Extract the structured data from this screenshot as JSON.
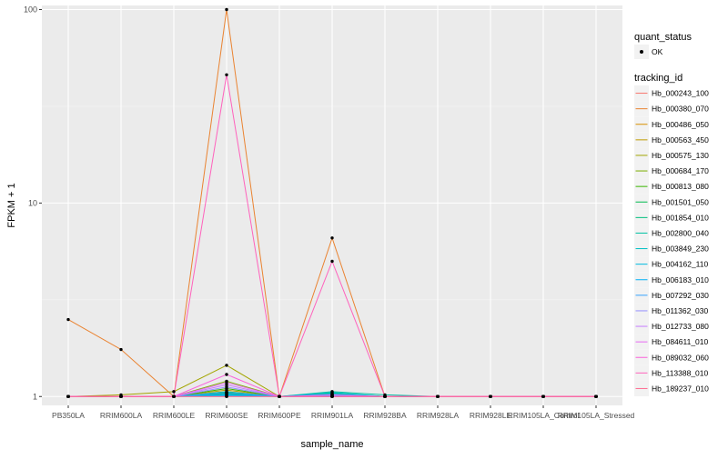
{
  "chart_data": {
    "type": "line",
    "xlabel": "sample_name",
    "ylabel": "FPKM + 1",
    "y_scale": "log10",
    "ylim": [
      0.9,
      105
    ],
    "y_ticks": [
      1,
      10,
      100
    ],
    "y_tick_labels": [
      "1",
      "10",
      "100"
    ],
    "grid": true,
    "legend_position": "right",
    "categories": [
      "PB350LA",
      "RRIM600LA",
      "RRIM600LE",
      "RRIM600SE",
      "RRIM600PE",
      "RRIM901LA",
      "RRIM928BA",
      "RRIM928LA",
      "RRIM928LE",
      "RRIM105LA_Control",
      "RRIM105LA_Stressed"
    ],
    "x_tick_labels": [
      "PB350LA",
      "RRIM600LA",
      "RRIM600LE",
      "RRIM600SE",
      "RRIM600PE",
      "RRIM901LA",
      "RRIM928BA",
      "RRIM928LA",
      "RRIM928LE",
      "RRIM105LA_Control",
      "RRIM105LA_Stressed"
    ],
    "quant_status_legend": {
      "title": "quant_status",
      "items": [
        "OK"
      ]
    },
    "tracking_id_legend_title": "tracking_id",
    "series": [
      {
        "name": "Hb_000243_100",
        "color": "#F8766D",
        "values": [
          1,
          1,
          1,
          1,
          1,
          1,
          1,
          1,
          1,
          1,
          1
        ]
      },
      {
        "name": "Hb_000380_070",
        "color": "#EA8331",
        "values": [
          2.5,
          1.75,
          1,
          100,
          1,
          6.6,
          1,
          1,
          1,
          1,
          1
        ]
      },
      {
        "name": "Hb_000486_050",
        "color": "#D89000",
        "values": [
          1,
          1,
          1,
          1.05,
          1,
          1,
          1,
          1,
          1,
          1,
          1
        ]
      },
      {
        "name": "Hb_000563_450",
        "color": "#C09B00",
        "values": [
          1,
          1,
          1,
          1.08,
          1,
          1,
          1,
          1,
          1,
          1,
          1
        ]
      },
      {
        "name": "Hb_000575_130",
        "color": "#A3A500",
        "values": [
          1,
          1.02,
          1.06,
          1.45,
          1,
          1.02,
          1,
          1,
          1,
          1,
          1
        ]
      },
      {
        "name": "Hb_000684_170",
        "color": "#7CAE00",
        "values": [
          1,
          1,
          1,
          1.2,
          1,
          1,
          1,
          1,
          1,
          1,
          1
        ]
      },
      {
        "name": "Hb_000813_080",
        "color": "#39B600",
        "values": [
          1,
          1,
          1,
          1.1,
          1,
          1.03,
          1,
          1,
          1,
          1,
          1
        ]
      },
      {
        "name": "Hb_001501_050",
        "color": "#00BB4E",
        "values": [
          1,
          1,
          1,
          1.04,
          1,
          1.02,
          1,
          1,
          1,
          1,
          1
        ]
      },
      {
        "name": "Hb_001854_010",
        "color": "#00BF7D",
        "values": [
          1,
          1,
          1,
          1.06,
          1,
          1.04,
          1,
          1,
          1,
          1,
          1
        ]
      },
      {
        "name": "Hb_002800_040",
        "color": "#00C1A3",
        "values": [
          1,
          1,
          1,
          1.02,
          1,
          1.06,
          1.02,
          1,
          1,
          1,
          1
        ]
      },
      {
        "name": "Hb_003849_230",
        "color": "#00BFC4",
        "values": [
          1,
          1,
          1,
          1.03,
          1,
          1.05,
          1,
          1,
          1,
          1,
          1
        ]
      },
      {
        "name": "Hb_004162_110",
        "color": "#00BAE0",
        "values": [
          1,
          1,
          1,
          1.01,
          1,
          1.03,
          1,
          1,
          1,
          1,
          1
        ]
      },
      {
        "name": "Hb_006183_010",
        "color": "#00B0F6",
        "values": [
          1,
          1,
          1,
          1.02,
          1,
          1.02,
          1,
          1,
          1,
          1,
          1
        ]
      },
      {
        "name": "Hb_007292_030",
        "color": "#35A2FF",
        "values": [
          1,
          1,
          1,
          1.05,
          1,
          1.01,
          1,
          1,
          1,
          1,
          1
        ]
      },
      {
        "name": "Hb_011362_030",
        "color": "#9590FF",
        "values": [
          1,
          1,
          1,
          1.12,
          1,
          1,
          1,
          1,
          1,
          1,
          1
        ]
      },
      {
        "name": "Hb_012733_080",
        "color": "#C77CFF",
        "values": [
          1,
          1,
          1,
          1.15,
          1,
          1,
          1,
          1,
          1,
          1,
          1
        ]
      },
      {
        "name": "Hb_084611_010",
        "color": "#E76BF3",
        "values": [
          1,
          1,
          1,
          1.18,
          1,
          1.02,
          1,
          1,
          1,
          1,
          1
        ]
      },
      {
        "name": "Hb_089032_060",
        "color": "#FA62DB",
        "values": [
          1,
          1,
          1,
          1.3,
          1,
          1,
          1,
          1,
          1,
          1,
          1
        ]
      },
      {
        "name": "Hb_113388_010",
        "color": "#FF62BC",
        "values": [
          1,
          1,
          1,
          46,
          1,
          5,
          1,
          1,
          1,
          1,
          1
        ]
      },
      {
        "name": "Hb_189237_010",
        "color": "#FF6C91",
        "values": [
          1,
          1,
          1,
          1,
          1,
          1,
          1,
          1,
          1,
          1,
          1
        ]
      }
    ]
  }
}
